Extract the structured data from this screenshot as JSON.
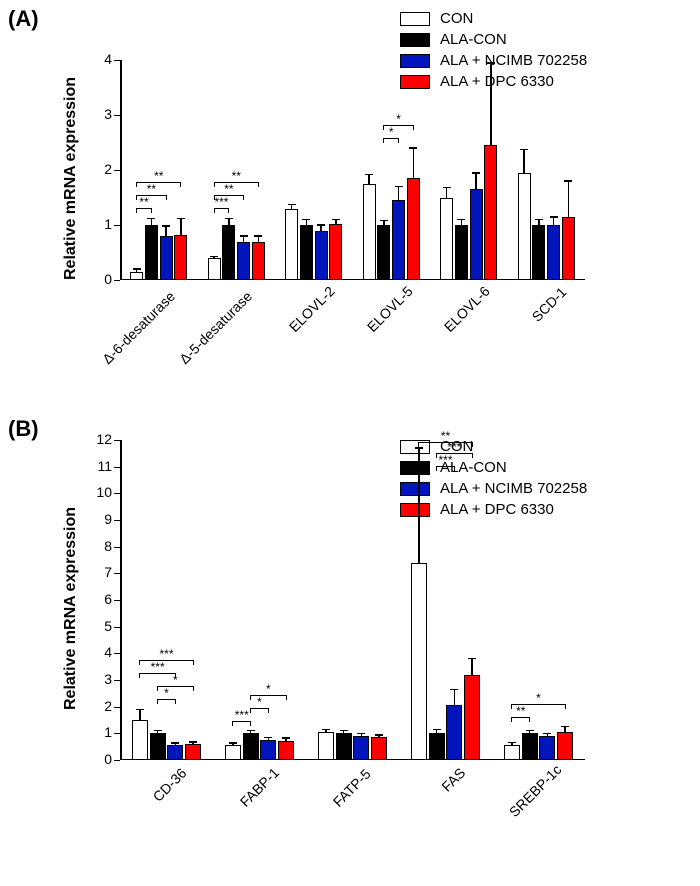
{
  "panelA": {
    "label": "(A)",
    "ylabel": "Relative mRNA expression",
    "ylim": [
      0,
      4
    ],
    "yticks": [
      0,
      1,
      2,
      3,
      4
    ],
    "categories": [
      "Δ-6-desaturase",
      "Δ-5-desaturase",
      "ELOVL-2",
      "ELOVL-5",
      "ELOVL-6",
      "SCD-1"
    ],
    "series": [
      {
        "name": "CON",
        "values": [
          0.15,
          0.4,
          1.3,
          1.75,
          1.5,
          1.95
        ],
        "err": [
          0.05,
          0.03,
          0.07,
          0.17,
          0.18,
          0.42
        ],
        "color": "#ffffff"
      },
      {
        "name": "ALA-CON",
        "values": [
          1.0,
          1.0,
          1.0,
          1.0,
          1.0,
          1.0
        ],
        "err": [
          0.12,
          0.12,
          0.1,
          0.08,
          0.1,
          0.1
        ],
        "color": "#000000"
      },
      {
        "name": "ALA + NCIMB 702258",
        "values": [
          0.8,
          0.7,
          0.9,
          1.45,
          1.65,
          1.0
        ],
        "err": [
          0.18,
          0.1,
          0.1,
          0.25,
          0.3,
          0.15
        ],
        "color": "#0015bc"
      },
      {
        "name": "ALA + DPC 6330",
        "values": [
          0.82,
          0.7,
          1.02,
          1.85,
          2.45,
          1.15
        ],
        "err": [
          0.3,
          0.1,
          0.08,
          0.55,
          1.5,
          0.65
        ],
        "color": "#ff0000"
      }
    ],
    "sig": [
      {
        "cat": 0,
        "from": 0,
        "to": 1,
        "label": "**",
        "level": 0
      },
      {
        "cat": 0,
        "from": 0,
        "to": 2,
        "label": "**",
        "level": 1
      },
      {
        "cat": 0,
        "from": 0,
        "to": 3,
        "label": "**",
        "level": 2
      },
      {
        "cat": 1,
        "from": 0,
        "to": 1,
        "label": "***",
        "level": 0
      },
      {
        "cat": 1,
        "from": 0,
        "to": 2,
        "label": "**",
        "level": 1
      },
      {
        "cat": 1,
        "from": 0,
        "to": 3,
        "label": "**",
        "level": 2
      },
      {
        "cat": 3,
        "from": 1,
        "to": 2,
        "label": "*",
        "level": 0
      },
      {
        "cat": 3,
        "from": 1,
        "to": 3,
        "label": "*",
        "level": 1
      }
    ]
  },
  "panelB": {
    "label": "(B)",
    "ylabel": "Relative mRNA expression",
    "ylim": [
      0,
      12
    ],
    "yticks": [
      0,
      1,
      2,
      3,
      4,
      5,
      6,
      7,
      8,
      9,
      10,
      11,
      12
    ],
    "categories": [
      "CD-36",
      "FABP-1",
      "FATP-5",
      "FAS",
      "SREBP-1c"
    ],
    "series": [
      {
        "name": "CON",
        "values": [
          1.5,
          0.55,
          1.05,
          7.4,
          0.55
        ],
        "err": [
          0.4,
          0.08,
          0.1,
          4.3,
          0.1
        ],
        "color": "#ffffff"
      },
      {
        "name": "ALA-CON",
        "values": [
          1.0,
          1.0,
          1.0,
          1.0,
          1.0
        ],
        "err": [
          0.1,
          0.1,
          0.1,
          0.15,
          0.1
        ],
        "color": "#000000"
      },
      {
        "name": "ALA + NCIMB 702258",
        "values": [
          0.55,
          0.75,
          0.9,
          2.05,
          0.9
        ],
        "err": [
          0.08,
          0.1,
          0.1,
          0.6,
          0.1
        ],
        "color": "#0015bc"
      },
      {
        "name": "ALA + DPC 6330",
        "values": [
          0.6,
          0.72,
          0.85,
          3.2,
          1.05
        ],
        "err": [
          0.08,
          0.1,
          0.08,
          0.6,
          0.2
        ],
        "color": "#ff0000"
      }
    ],
    "sig": [
      {
        "cat": 0,
        "from": 1,
        "to": 2,
        "label": "*",
        "level": 0
      },
      {
        "cat": 0,
        "from": 1,
        "to": 3,
        "label": "*",
        "level": 1
      },
      {
        "cat": 0,
        "from": 0,
        "to": 2,
        "label": "***",
        "level": 2
      },
      {
        "cat": 0,
        "from": 0,
        "to": 3,
        "label": "***",
        "level": 3
      },
      {
        "cat": 1,
        "from": 0,
        "to": 1,
        "label": "***",
        "level": 0
      },
      {
        "cat": 1,
        "from": 1,
        "to": 2,
        "label": "*",
        "level": 1
      },
      {
        "cat": 1,
        "from": 1,
        "to": 3,
        "label": "*",
        "level": 2
      },
      {
        "cat": 3,
        "from": 1,
        "to": 2,
        "label": "***",
        "level": 0
      },
      {
        "cat": 3,
        "from": 1,
        "to": 3,
        "label": "***",
        "level": 1
      },
      {
        "cat": 3,
        "from": 0,
        "to": 3,
        "label": "**",
        "level": 2
      },
      {
        "cat": 4,
        "from": 0,
        "to": 1,
        "label": "**",
        "level": 0
      },
      {
        "cat": 4,
        "from": 0,
        "to": 3,
        "label": "*",
        "level": 1
      }
    ]
  },
  "legend": {
    "items": [
      {
        "label": "CON",
        "color": "#ffffff"
      },
      {
        "label": "ALA-CON",
        "color": "#000000"
      },
      {
        "label": "ALA +  NCIMB 702258",
        "color": "#0015bc"
      },
      {
        "label": "ALA + DPC 6330",
        "color": "#ff0000"
      }
    ]
  }
}
